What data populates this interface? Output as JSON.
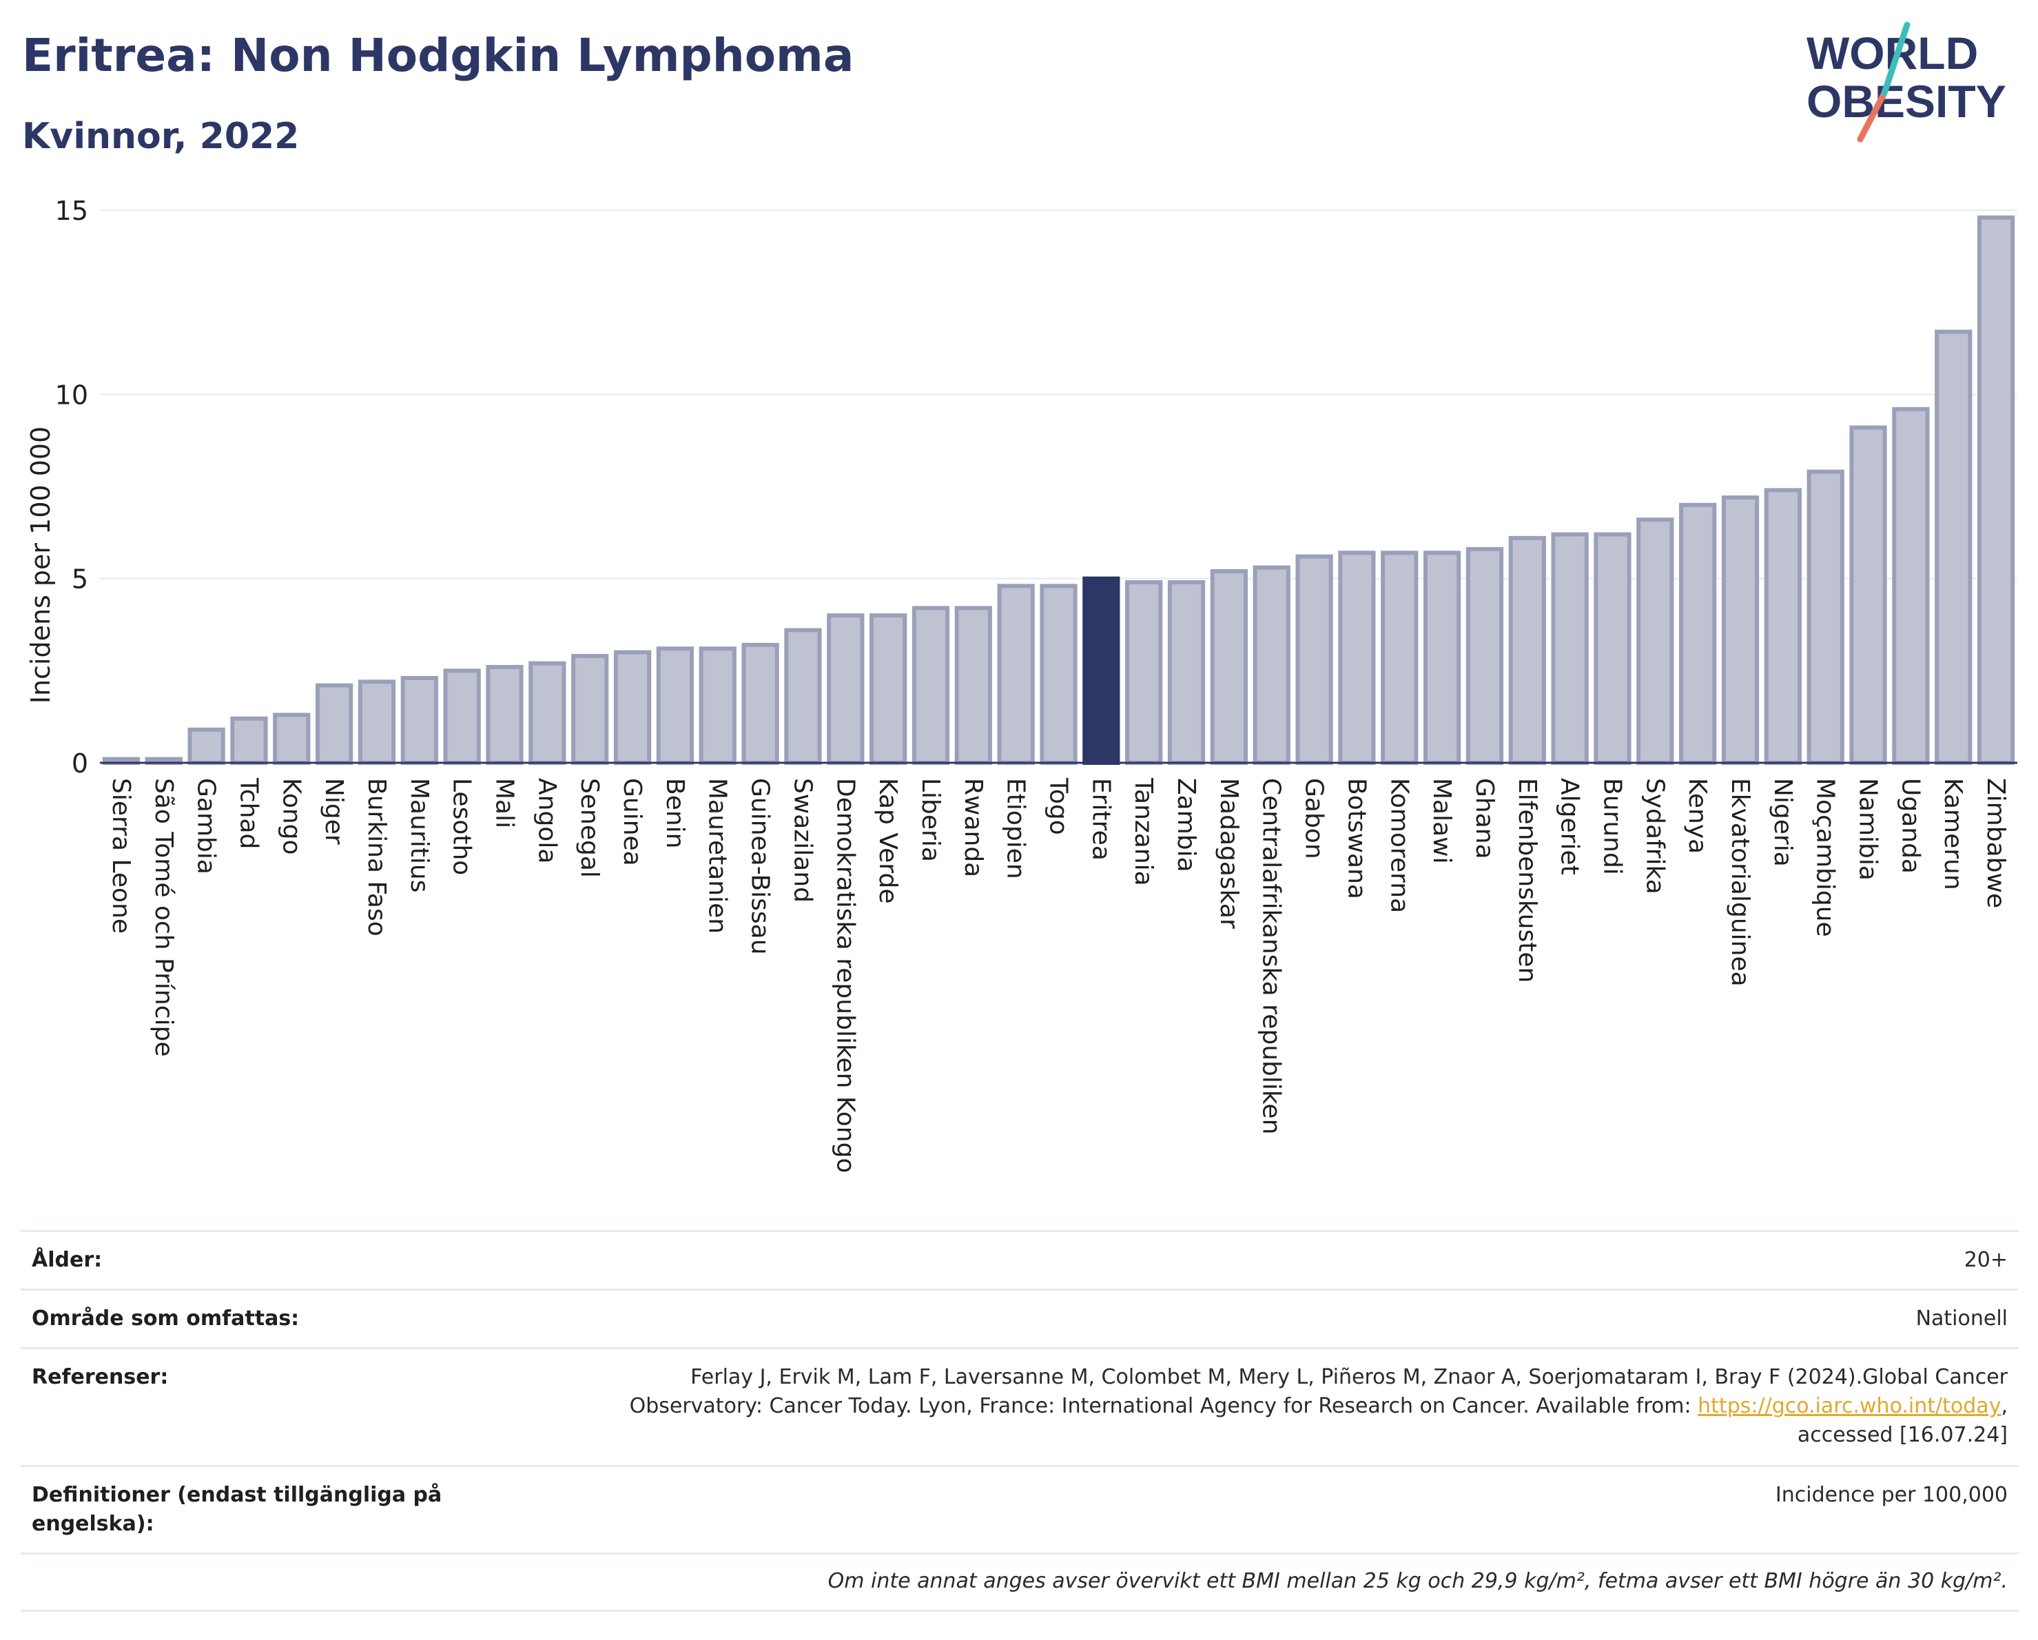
{
  "header": {
    "title": "Eritrea: Non Hodgkin Lymphoma",
    "subtitle": "Kvinnor, 2022",
    "logo_text_1": "WORLD",
    "logo_text_2": "OBESITY"
  },
  "chart_data": {
    "type": "bar",
    "ylabel": "Incidens per 100 000",
    "ylim": [
      0,
      15
    ],
    "yticks": [
      "0",
      "5",
      "10",
      "15"
    ],
    "grid": true,
    "highlight": "Eritrea",
    "colors": {
      "bar": "#bfc3d1",
      "bar_edge": "#9aa0b9",
      "highlight": "#2d3766",
      "grid": "#e6e9f2"
    },
    "categories": [
      "Sierra Leone",
      "São Tomé och Príncipe",
      "Gambia",
      "Tchad",
      "Kongo",
      "Niger",
      "Burkina Faso",
      "Mauritius",
      "Lesotho",
      "Mali",
      "Angola",
      "Senegal",
      "Guinea",
      "Benin",
      "Mauretanien",
      "Guinea-Bissau",
      "Swaziland",
      "Demokratiska republiken Kongo",
      "Kap Verde",
      "Liberia",
      "Rwanda",
      "Etiopien",
      "Togo",
      "Eritrea",
      "Tanzania",
      "Zambia",
      "Madagaskar",
      "Centralafrikanska republiken",
      "Gabon",
      "Botswana",
      "Komorerna",
      "Malawi",
      "Ghana",
      "Elfenbenskusten",
      "Algeriet",
      "Burundi",
      "Sydafrika",
      "Kenya",
      "Ekvatorialguinea",
      "Nigeria",
      "Moçambique",
      "Namibia",
      "Uganda",
      "Kamerun",
      "Zimbabwe"
    ],
    "values": [
      0.1,
      0.1,
      0.9,
      1.2,
      1.3,
      2.1,
      2.2,
      2.3,
      2.5,
      2.6,
      2.7,
      2.9,
      3.0,
      3.1,
      3.1,
      3.2,
      3.6,
      4.0,
      4.0,
      4.2,
      4.2,
      4.8,
      4.8,
      5.0,
      4.9,
      4.9,
      5.2,
      5.3,
      5.6,
      5.7,
      5.7,
      5.7,
      5.8,
      6.1,
      6.2,
      6.2,
      6.6,
      7.0,
      7.2,
      7.4,
      7.9,
      9.1,
      9.6,
      11.7,
      14.8
    ]
  },
  "info": {
    "age_label": "Ålder:",
    "age_value": "20+",
    "area_label": "Område som omfattas:",
    "area_value": "Nationell",
    "refs_label": "Referenser:",
    "refs_line1": "Ferlay J, Ervik M, Lam F, Laversanne M, Colombet M, Mery L, Piñeros M, Znaor A, Soerjomataram I, Bray F (2024).Global Cancer",
    "refs_line2": "Observatory: Cancer Today. Lyon, France: International Agency for Research on Cancer. Available from: ",
    "refs_link": "https://gco.iarc.who.int/today",
    "refs_line2_end": ",",
    "refs_line3": "accessed [16.07.24]",
    "def_label_1": "Definitioner (endast tillgängliga på",
    "def_label_2": "engelska):",
    "def_value": "Incidence per 100,000",
    "footnote": "Om inte annat anges avser övervikt ett BMI mellan 25 kg och 29,9 kg/m², fetma avser ett BMI högre än 30 kg/m²."
  }
}
